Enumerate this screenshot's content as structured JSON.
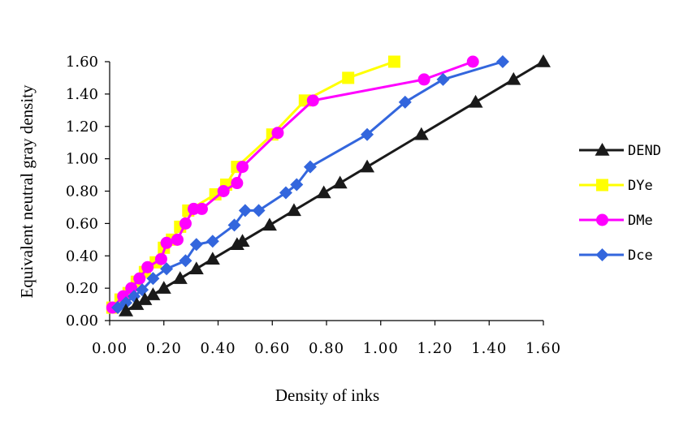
{
  "chart_data": {
    "type": "line",
    "title": "",
    "xlabel": "Density of inks",
    "ylabel": "Equivalent neutral gray density",
    "xlim": [
      0,
      1.6
    ],
    "ylim": [
      0,
      1.6
    ],
    "x_ticks": [
      "0.00",
      "0.20",
      "0.40",
      "0.60",
      "0.80",
      "1.00",
      "1.20",
      "1.40",
      "1.60"
    ],
    "y_ticks": [
      "0.00",
      "0.20",
      "0.40",
      "0.60",
      "0.80",
      "1.00",
      "1.20",
      "1.40",
      "1.60"
    ],
    "grid": false,
    "legend_position": "right",
    "series": [
      {
        "name": "DEND",
        "color": "#1a1a1a",
        "marker": "triangle",
        "points": [
          [
            0.06,
            0.06
          ],
          [
            0.1,
            0.1
          ],
          [
            0.13,
            0.13
          ],
          [
            0.16,
            0.16
          ],
          [
            0.2,
            0.2
          ],
          [
            0.26,
            0.26
          ],
          [
            0.32,
            0.32
          ],
          [
            0.38,
            0.38
          ],
          [
            0.47,
            0.47
          ],
          [
            0.49,
            0.49
          ],
          [
            0.59,
            0.59
          ],
          [
            0.68,
            0.68
          ],
          [
            0.79,
            0.79
          ],
          [
            0.85,
            0.85
          ],
          [
            0.95,
            0.95
          ],
          [
            1.15,
            1.15
          ],
          [
            1.35,
            1.35
          ],
          [
            1.49,
            1.49
          ],
          [
            1.6,
            1.6
          ]
        ]
      },
      {
        "name": "DYe",
        "color": "#ffff00",
        "marker": "square",
        "points": [
          [
            0.01,
            0.08
          ],
          [
            0.04,
            0.13
          ],
          [
            0.07,
            0.17
          ],
          [
            0.1,
            0.24
          ],
          [
            0.13,
            0.3
          ],
          [
            0.17,
            0.36
          ],
          [
            0.2,
            0.45
          ],
          [
            0.23,
            0.5
          ],
          [
            0.26,
            0.58
          ],
          [
            0.29,
            0.68
          ],
          [
            0.39,
            0.78
          ],
          [
            0.43,
            0.84
          ],
          [
            0.47,
            0.95
          ],
          [
            0.6,
            1.15
          ],
          [
            0.72,
            1.36
          ],
          [
            0.88,
            1.5
          ],
          [
            1.05,
            1.6
          ]
        ]
      },
      {
        "name": "DMe",
        "color": "#ff00ff",
        "marker": "circle",
        "points": [
          [
            0.01,
            0.08
          ],
          [
            0.05,
            0.15
          ],
          [
            0.08,
            0.2
          ],
          [
            0.11,
            0.26
          ],
          [
            0.14,
            0.33
          ],
          [
            0.19,
            0.38
          ],
          [
            0.21,
            0.48
          ],
          [
            0.25,
            0.5
          ],
          [
            0.28,
            0.6
          ],
          [
            0.31,
            0.69
          ],
          [
            0.34,
            0.69
          ],
          [
            0.42,
            0.8
          ],
          [
            0.47,
            0.85
          ],
          [
            0.49,
            0.95
          ],
          [
            0.62,
            1.16
          ],
          [
            0.75,
            1.36
          ],
          [
            1.16,
            1.49
          ],
          [
            1.34,
            1.6
          ]
        ]
      },
      {
        "name": "Dce",
        "color": "#3366dd",
        "marker": "diamond",
        "points": [
          [
            0.03,
            0.08
          ],
          [
            0.06,
            0.11
          ],
          [
            0.09,
            0.15
          ],
          [
            0.12,
            0.19
          ],
          [
            0.16,
            0.26
          ],
          [
            0.21,
            0.32
          ],
          [
            0.28,
            0.37
          ],
          [
            0.32,
            0.47
          ],
          [
            0.38,
            0.49
          ],
          [
            0.46,
            0.59
          ],
          [
            0.5,
            0.68
          ],
          [
            0.55,
            0.68
          ],
          [
            0.65,
            0.79
          ],
          [
            0.69,
            0.84
          ],
          [
            0.74,
            0.95
          ],
          [
            0.95,
            1.15
          ],
          [
            1.09,
            1.35
          ],
          [
            1.23,
            1.49
          ],
          [
            1.45,
            1.6
          ]
        ]
      }
    ]
  }
}
